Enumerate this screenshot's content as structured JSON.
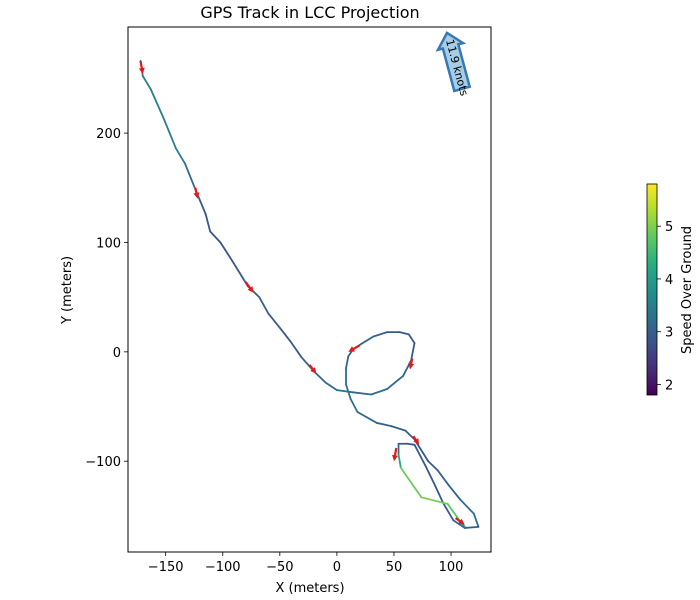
{
  "chart_data": {
    "type": "line",
    "title": "GPS Track in LCC Projection",
    "xlabel": "X (meters)",
    "ylabel": "Y (meters)",
    "xlim": [
      -183,
      135
    ],
    "ylim": [
      -183,
      297
    ],
    "xticks": [
      -150,
      -100,
      -50,
      0,
      50,
      100
    ],
    "yticks": [
      -100,
      0,
      100,
      200
    ],
    "xtick_labels": [
      "−150",
      "−100",
      "−50",
      "0",
      "50",
      "100"
    ],
    "ytick_labels": [
      "−100",
      "0",
      "100",
      "200"
    ],
    "colorbar": {
      "label": "Speed Over Ground",
      "colormap": "viridis",
      "range": [
        1.8,
        5.8
      ],
      "ticks": [
        2,
        3,
        4,
        5
      ],
      "tick_labels": [
        "2",
        "3",
        "4",
        "5"
      ]
    },
    "track": [
      {
        "x": -172,
        "y": 266,
        "speed": 3.4
      },
      {
        "x": -170,
        "y": 252,
        "speed": 3.4
      },
      {
        "x": -163,
        "y": 240,
        "speed": 3.5
      },
      {
        "x": -152,
        "y": 214,
        "speed": 3.5
      },
      {
        "x": -141,
        "y": 186,
        "speed": 3.5
      },
      {
        "x": -133,
        "y": 172,
        "speed": 3.4
      },
      {
        "x": -123,
        "y": 146,
        "speed": 3.0
      },
      {
        "x": -115,
        "y": 126,
        "speed": 2.9
      },
      {
        "x": -111,
        "y": 110,
        "speed": 2.8
      },
      {
        "x": -102,
        "y": 100,
        "speed": 2.8
      },
      {
        "x": -94,
        "y": 87,
        "speed": 2.8
      },
      {
        "x": -88,
        "y": 77,
        "speed": 2.9
      },
      {
        "x": -78,
        "y": 60,
        "speed": 3.0
      },
      {
        "x": -68,
        "y": 50,
        "speed": 3.0
      },
      {
        "x": -60,
        "y": 35,
        "speed": 3.0
      },
      {
        "x": -50,
        "y": 22,
        "speed": 2.9
      },
      {
        "x": -41,
        "y": 10,
        "speed": 2.9
      },
      {
        "x": -31,
        "y": -5,
        "speed": 3.0
      },
      {
        "x": -20,
        "y": -18,
        "speed": 3.0
      },
      {
        "x": -10,
        "y": -28,
        "speed": 3.2
      },
      {
        "x": 0,
        "y": -35,
        "speed": 3.3
      },
      {
        "x": 14,
        "y": -37,
        "speed": 3.2
      },
      {
        "x": 30,
        "y": -39,
        "speed": 3.2
      },
      {
        "x": 44,
        "y": -34,
        "speed": 3.2
      },
      {
        "x": 58,
        "y": -22,
        "speed": 3.1
      },
      {
        "x": 65,
        "y": -8,
        "speed": 3.0
      },
      {
        "x": 68,
        "y": 8,
        "speed": 2.9
      },
      {
        "x": 63,
        "y": 16,
        "speed": 2.9
      },
      {
        "x": 55,
        "y": 18,
        "speed": 2.9
      },
      {
        "x": 44,
        "y": 18,
        "speed": 3.0
      },
      {
        "x": 32,
        "y": 14,
        "speed": 3.1
      },
      {
        "x": 21,
        "y": 7,
        "speed": 3.1
      },
      {
        "x": 14,
        "y": 2,
        "speed": 3.1
      },
      {
        "x": 10,
        "y": -4,
        "speed": 3.1
      },
      {
        "x": 8,
        "y": -15,
        "speed": 3.2
      },
      {
        "x": 8,
        "y": -30,
        "speed": 3.3
      },
      {
        "x": 12,
        "y": -43,
        "speed": 3.3
      },
      {
        "x": 18,
        "y": -55,
        "speed": 3.2
      },
      {
        "x": 35,
        "y": -65,
        "speed": 3.1
      },
      {
        "x": 48,
        "y": -68,
        "speed": 3.0
      },
      {
        "x": 60,
        "y": -72,
        "speed": 3.0
      },
      {
        "x": 68,
        "y": -80,
        "speed": 2.9
      },
      {
        "x": 80,
        "y": -100,
        "speed": 2.9
      },
      {
        "x": 88,
        "y": -108,
        "speed": 3.0
      },
      {
        "x": 98,
        "y": -122,
        "speed": 3.1
      },
      {
        "x": 108,
        "y": -135,
        "speed": 3.2
      },
      {
        "x": 120,
        "y": -148,
        "speed": 3.3
      },
      {
        "x": 124,
        "y": -160,
        "speed": 3.1
      },
      {
        "x": 112,
        "y": -161,
        "speed": 3.0
      },
      {
        "x": 102,
        "y": -154,
        "speed": 3.0
      },
      {
        "x": 93,
        "y": -138,
        "speed": 2.9
      },
      {
        "x": 85,
        "y": -120,
        "speed": 2.9
      },
      {
        "x": 77,
        "y": -103,
        "speed": 2.9
      },
      {
        "x": 68,
        "y": -85,
        "speed": 2.9
      },
      {
        "x": 62,
        "y": -84,
        "speed": 2.9
      },
      {
        "x": 54,
        "y": -84,
        "speed": 2.9
      },
      {
        "x": 54,
        "y": -94,
        "speed": 3.5
      },
      {
        "x": 56,
        "y": -106,
        "speed": 4.8
      },
      {
        "x": 74,
        "y": -133,
        "speed": 5.0
      },
      {
        "x": 97,
        "y": -139,
        "speed": 4.9
      },
      {
        "x": 108,
        "y": -155,
        "speed": 4.6
      },
      {
        "x": 112,
        "y": -160,
        "speed": 3.2
      }
    ],
    "heading_markers": [
      {
        "x": -172,
        "y": 266,
        "dx": 2,
        "dy": -12
      },
      {
        "x": -124,
        "y": 150,
        "dx": 2,
        "dy": -10
      },
      {
        "x": -80,
        "y": 64,
        "dx": 7,
        "dy": -10
      },
      {
        "x": -24,
        "y": -12,
        "dx": 6,
        "dy": -8
      },
      {
        "x": 20,
        "y": 6,
        "dx": -10,
        "dy": -6
      },
      {
        "x": 66,
        "y": -6,
        "dx": -2,
        "dy": -10
      },
      {
        "x": 67,
        "y": -77,
        "dx": 5,
        "dy": -8
      },
      {
        "x": 52,
        "y": -88,
        "dx": -2,
        "dy": -12
      },
      {
        "x": 104,
        "y": -152,
        "dx": 8,
        "dy": -6
      }
    ],
    "wind": {
      "speed_label": "11.9 knots",
      "x": 103,
      "y": 266,
      "direction_deg": 105
    }
  }
}
